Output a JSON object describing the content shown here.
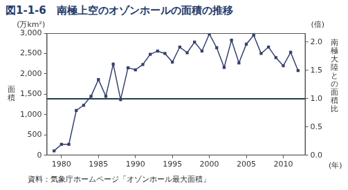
{
  "chart_data": {
    "type": "line",
    "title": "図1-1-6　南極上空のオゾンホールの面積の推移",
    "source": "資料：気象庁ホームページ「オゾンホール最大面積」",
    "y_unit": "(万km²)",
    "y_label": "面積",
    "y2_unit": "(倍)",
    "y2_label": "南極大陸との面積比",
    "x_unit": "(年)",
    "x": [
      1979,
      1980,
      1981,
      1982,
      1983,
      1984,
      1985,
      1986,
      1987,
      1988,
      1989,
      1990,
      1991,
      1992,
      1993,
      1994,
      1995,
      1996,
      1997,
      1998,
      1999,
      2000,
      2001,
      2002,
      2003,
      2004,
      2005,
      2006,
      2007,
      2008,
      2009,
      2010,
      2011,
      2012
    ],
    "series": [
      {
        "color": "#34406e",
        "marker": "square",
        "values": [
          110,
          270,
          270,
          1100,
          1230,
          1450,
          1860,
          1450,
          2240,
          1370,
          2150,
          2100,
          2230,
          2480,
          2560,
          2500,
          2290,
          2660,
          2520,
          2780,
          2560,
          2980,
          2640,
          2160,
          2830,
          2270,
          2730,
          2950,
          2500,
          2660,
          2400,
          2200,
          2530,
          2080
        ]
      }
    ],
    "reference_line": 1390,
    "reference_line_color": "#1f3c4c",
    "xlim": [
      1978,
      2013
    ],
    "xticks": [
      1980,
      1985,
      1990,
      1995,
      2000,
      2005,
      2010
    ],
    "ylim": [
      0,
      3000
    ],
    "yticks": [
      0,
      500,
      {
        "value": 1000,
        "label": "1,000"
      },
      {
        "value": 1500,
        "label": "1,500"
      },
      {
        "value": 2000,
        "label": "2,000"
      },
      {
        "value": 2500,
        "label": "2,500"
      },
      {
        "value": 3000,
        "label": "3,000"
      }
    ],
    "y2lim": [
      0,
      2.158
    ],
    "y2ticks": [
      {
        "value": 0,
        "label": "0.0"
      },
      {
        "value": 0.5,
        "label": "0.5"
      },
      {
        "value": 1,
        "label": "1.0"
      },
      {
        "value": 1.5,
        "label": "1.5"
      },
      {
        "value": 2,
        "label": "2.0"
      }
    ],
    "grid": false
  }
}
